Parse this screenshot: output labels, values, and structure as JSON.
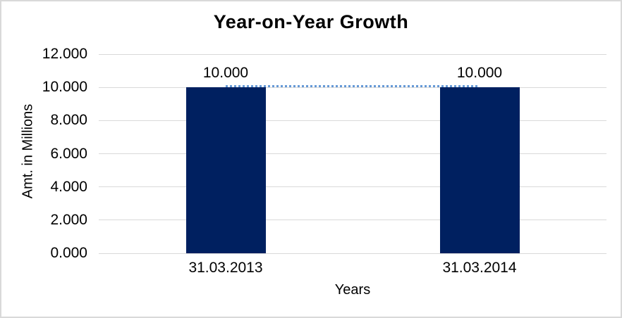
{
  "chart_data": {
    "type": "bar",
    "title": "Year-on-Year Growth",
    "xlabel": "Years",
    "ylabel": "Amt. in Millions",
    "categories": [
      "31.03.2013",
      "31.03.2014"
    ],
    "values": [
      10,
      10
    ],
    "data_labels": [
      "10.000",
      "10.000"
    ],
    "y_ticks": [
      {
        "value": 0,
        "label": "0.000"
      },
      {
        "value": 2,
        "label": "2.000"
      },
      {
        "value": 4,
        "label": "4.000"
      },
      {
        "value": 6,
        "label": "6.000"
      },
      {
        "value": 8,
        "label": "8.000"
      },
      {
        "value": 10,
        "label": "10.000"
      },
      {
        "value": 12,
        "label": "12.000"
      }
    ],
    "ylim": [
      0,
      12
    ],
    "grid": true,
    "legend": "none",
    "trendline": {
      "style": "dotted",
      "values": [
        10,
        10
      ],
      "color": "#6699d6"
    },
    "colors": {
      "bar": "#002060",
      "gridline": "#d9d9d9",
      "border": "#d9d9d9",
      "background": "#ffffff",
      "text": "#000000",
      "trendline": "#6699d6"
    }
  }
}
